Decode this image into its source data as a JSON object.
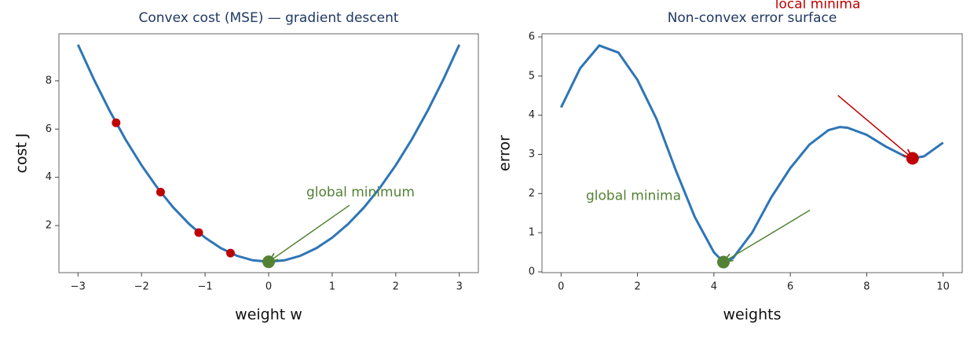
{
  "chart_data": [
    {
      "type": "line",
      "title": "Convex cost (MSE) — gradient descent",
      "x_label": "weight w",
      "y_label": "cost J",
      "x": [
        -3,
        -2.75,
        -2.5,
        -2.25,
        -2,
        -1.75,
        -1.5,
        -1.25,
        -1,
        -0.75,
        -0.5,
        -0.25,
        0,
        0.25,
        0.5,
        0.75,
        1,
        1.25,
        1.5,
        1.75,
        2,
        2.25,
        2.5,
        2.75,
        3
      ],
      "values": [
        9.5,
        8.0625,
        6.75,
        5.5625,
        4.5,
        3.5625,
        2.75,
        2.0625,
        1.5,
        1.0625,
        0.75,
        0.5625,
        0.5,
        0.5625,
        0.75,
        1.0625,
        1.5,
        2.0625,
        2.75,
        3.5625,
        4.5,
        5.5625,
        6.75,
        8.0625,
        9.5
      ],
      "color": "#2e75b6",
      "points": [
        {
          "x": [
            -2.4,
            -1.7,
            -1.1,
            -0.6
          ],
          "values": [
            6.26,
            3.39,
            1.71,
            0.86
          ],
          "color": "#c00000"
        },
        {
          "x": [
            0
          ],
          "values": [
            0.5
          ],
          "color": "#548235"
        }
      ],
      "annotations": [
        {
          "text": "global minimum",
          "x": 0,
          "y": 0.5,
          "color": "#548235"
        }
      ],
      "xlim": [
        -3.3,
        3.3
      ],
      "ylim": [
        0.05,
        9.95
      ],
      "xticks": [
        {
          "value": -3,
          "label": "−3"
        },
        {
          "value": -2,
          "label": "−2"
        },
        {
          "value": -1,
          "label": "−1"
        },
        0,
        1,
        2,
        3
      ],
      "yticks": [
        2,
        4,
        6,
        8
      ]
    },
    {
      "type": "line",
      "title": "Non-convex error surface",
      "x_label": "weights",
      "y_label": "error",
      "x": [
        0,
        0.5,
        1,
        1.5,
        2,
        2.5,
        3,
        3.5,
        4,
        4.25,
        4.5,
        5,
        5.5,
        6,
        6.5,
        7,
        7.3,
        7.5,
        8,
        8.5,
        9,
        9.2,
        9.5,
        10
      ],
      "values": [
        4.2,
        5.2,
        5.78,
        5.6,
        4.9,
        3.9,
        2.6,
        1.4,
        0.5,
        0.25,
        0.35,
        1.0,
        1.9,
        2.65,
        3.25,
        3.62,
        3.7,
        3.68,
        3.5,
        3.2,
        2.95,
        2.9,
        2.95,
        3.3
      ],
      "color": "#2e75b6",
      "points": [
        {
          "x": [
            9.2
          ],
          "values": [
            2.9
          ],
          "color": "#c00000"
        },
        {
          "x": [
            4.25
          ],
          "values": [
            0.25
          ],
          "color": "#548235"
        }
      ],
      "annotations": [
        {
          "text": "local minima",
          "x": 9.2,
          "y": 2.9,
          "color": "#c00000"
        },
        {
          "text": "global minima",
          "x": 4.25,
          "y": 0.25,
          "color": "#548235"
        }
      ],
      "xlim": [
        -0.5,
        10.5
      ],
      "ylim": [
        -0.02,
        6.08
      ],
      "xticks": [
        0,
        2,
        4,
        6,
        8,
        10
      ],
      "yticks": [
        0,
        1,
        2,
        3,
        4,
        5,
        6
      ]
    }
  ]
}
